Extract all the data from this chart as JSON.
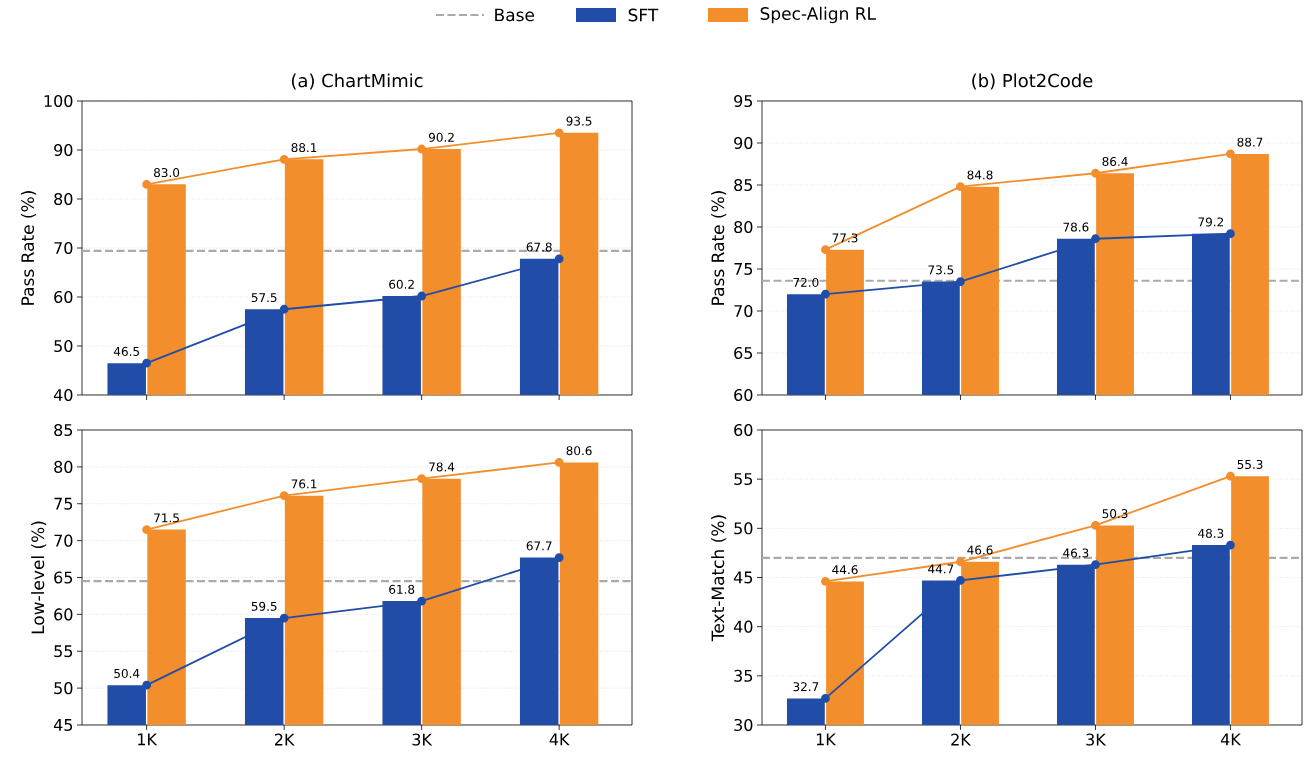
{
  "chart_data": [
    {
      "type": "bar",
      "title": "(a) ChartMimic",
      "ylabel": "Pass Rate (%)",
      "categories": [
        null,
        null,
        null,
        null
      ],
      "ylim": [
        40,
        100
      ],
      "yticks": [
        40,
        50,
        60,
        70,
        80,
        90,
        100
      ],
      "grid": "y",
      "legend": "top",
      "tick_labels": "y",
      "series": [
        {
          "name": "SFT",
          "color": "#214da8",
          "values": [
            46.5,
            57.5,
            60.2,
            67.8
          ],
          "value_labels": [
            "46.5",
            "57.5",
            "60.2",
            "67.8"
          ]
        },
        {
          "name": "Spec-Align RL",
          "color": "#f28e2b",
          "values": [
            83.0,
            88.1,
            90.2,
            93.5
          ],
          "value_labels": [
            "83.0",
            "88.1",
            "90.2",
            "93.5"
          ]
        },
        {
          "type": "line",
          "color": "#214da8",
          "marker": "circle",
          "values": [
            46.5,
            57.5,
            60.2,
            67.8
          ]
        },
        {
          "type": "line",
          "color": "#f28e2b",
          "marker": "circle",
          "values": [
            83.0,
            88.1,
            90.2,
            93.5
          ]
        }
      ],
      "ref_lines": [
        {
          "axis": "y",
          "value": 69.4,
          "label": "Base",
          "color": "#aaaaaa",
          "line_style": "dashed"
        }
      ]
    },
    {
      "type": "bar",
      "title": "(b) Plot2Code",
      "ylabel": "Pass Rate (%)",
      "categories": [
        null,
        null,
        null,
        null
      ],
      "ylim": [
        60,
        95
      ],
      "yticks": [
        60,
        65,
        70,
        75,
        80,
        85,
        90,
        95
      ],
      "grid": "y",
      "tick_labels": "y",
      "series": [
        {
          "color": "#214da8",
          "values": [
            72.0,
            73.5,
            78.6,
            79.2
          ],
          "value_labels": [
            "72.0",
            "73.5",
            "78.6",
            "79.2"
          ]
        },
        {
          "color": "#f28e2b",
          "values": [
            77.3,
            84.8,
            86.4,
            88.7
          ],
          "value_labels": [
            "77.3",
            "84.8",
            "86.4",
            "88.7"
          ]
        },
        {
          "type": "line",
          "color": "#214da8",
          "marker": "circle",
          "values": [
            72.0,
            73.5,
            78.6,
            79.2
          ]
        },
        {
          "type": "line",
          "color": "#f28e2b",
          "marker": "circle",
          "values": [
            77.3,
            84.8,
            86.4,
            88.7
          ]
        }
      ],
      "ref_lines": [
        {
          "axis": "y",
          "value": 73.6,
          "color": "#aaaaaa",
          "line_style": "dashed"
        }
      ]
    },
    {
      "type": "bar",
      "ylabel": "Low-level (%)",
      "categories": [
        "1K",
        "2K",
        "3K",
        "4K"
      ],
      "ylim": [
        45,
        85
      ],
      "yticks": [
        45,
        50,
        55,
        60,
        65,
        70,
        75,
        80,
        85
      ],
      "grid": "y",
      "series": [
        {
          "color": "#214da8",
          "values": [
            50.4,
            59.5,
            61.8,
            67.7
          ],
          "value_labels": [
            "50.4",
            "59.5",
            "61.8",
            "67.7"
          ]
        },
        {
          "color": "#f28e2b",
          "values": [
            71.5,
            76.1,
            78.4,
            80.6
          ],
          "value_labels": [
            "71.5",
            "76.1",
            "78.4",
            "80.6"
          ]
        },
        {
          "type": "line",
          "color": "#214da8",
          "marker": "circle",
          "values": [
            50.4,
            59.5,
            61.8,
            67.7
          ]
        },
        {
          "type": "line",
          "color": "#f28e2b",
          "marker": "circle",
          "values": [
            71.5,
            76.1,
            78.4,
            80.6
          ]
        }
      ],
      "ref_lines": [
        {
          "axis": "y",
          "value": 64.5,
          "color": "#aaaaaa",
          "line_style": "dashed"
        }
      ]
    },
    {
      "type": "bar",
      "ylabel": "Text-Match (%)",
      "categories": [
        "1K",
        "2K",
        "3K",
        "4K"
      ],
      "ylim": [
        30,
        60
      ],
      "yticks": [
        30,
        35,
        40,
        45,
        50,
        55,
        60
      ],
      "grid": "y",
      "series": [
        {
          "color": "#214da8",
          "values": [
            32.7,
            44.7,
            46.3,
            48.3
          ],
          "value_labels": [
            "32.7",
            "44.7",
            "46.3",
            "48.3"
          ]
        },
        {
          "color": "#f28e2b",
          "values": [
            44.6,
            46.6,
            50.3,
            55.3
          ],
          "value_labels": [
            "44.6",
            "46.6",
            "50.3",
            "55.3"
          ]
        },
        {
          "type": "line",
          "color": "#214da8",
          "marker": "circle",
          "values": [
            32.7,
            44.7,
            46.3,
            48.3
          ]
        },
        {
          "type": "line",
          "color": "#f28e2b",
          "marker": "circle",
          "values": [
            44.6,
            46.6,
            50.3,
            55.3
          ]
        }
      ],
      "ref_lines": [
        {
          "axis": "y",
          "value": 47.0,
          "color": "#aaaaaa",
          "line_style": "dashed"
        }
      ]
    }
  ]
}
